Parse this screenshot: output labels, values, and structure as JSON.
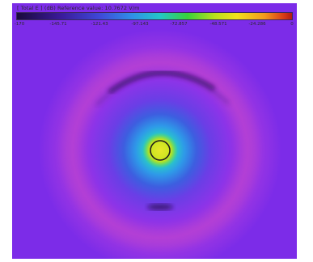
{
  "legend": {
    "title": "[ Total E ] (dB) Reference value: 10.7672 V/m",
    "ticks": [
      "-170",
      "-145.71",
      "-121.43",
      "-97.143",
      "-72.857",
      "-48.571",
      "-24.286",
      "0"
    ]
  },
  "colors": {
    "background": "#7c2ce8",
    "core_edge": "#1e1e1e"
  },
  "icons": [
    "antenna-ring-icon"
  ]
}
